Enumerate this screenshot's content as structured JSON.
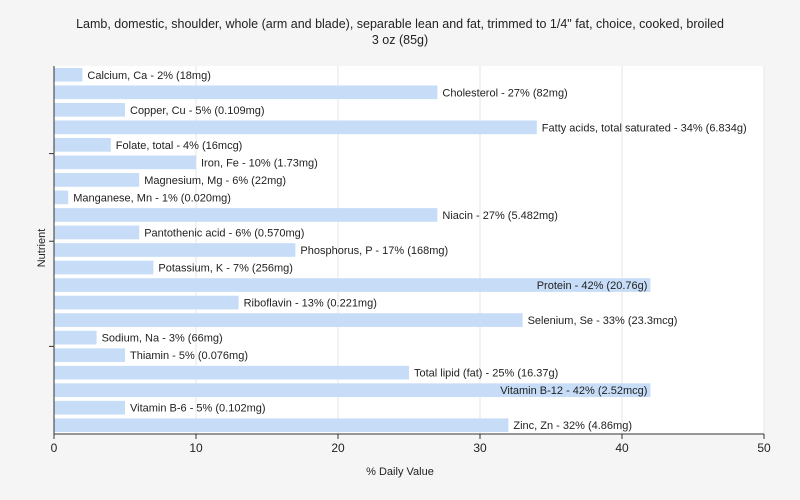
{
  "chart_data": {
    "type": "bar",
    "orientation": "horizontal",
    "title": "Lamb, domestic, shoulder, whole (arm and blade), separable lean and fat, trimmed to 1/4\" fat, choice, cooked, broiled",
    "subtitle": "3 oz (85g)",
    "xlabel": "% Daily Value",
    "ylabel": "Nutrient",
    "xlim": [
      0,
      50
    ],
    "xticks": [
      0,
      10,
      20,
      30,
      40,
      50
    ],
    "grid": true,
    "bar_color": "#c6dcf7",
    "categories": [
      "Calcium, Ca",
      "Cholesterol",
      "Copper, Cu",
      "Fatty acids, total saturated",
      "Folate, total",
      "Iron, Fe",
      "Magnesium, Mg",
      "Manganese, Mn",
      "Niacin",
      "Pantothenic acid",
      "Phosphorus, P",
      "Potassium, K",
      "Protein",
      "Riboflavin",
      "Selenium, Se",
      "Sodium, Na",
      "Thiamin",
      "Total lipid (fat)",
      "Vitamin B-12",
      "Vitamin B-6",
      "Zinc, Zn"
    ],
    "values": [
      2,
      27,
      5,
      34,
      4,
      10,
      6,
      1,
      27,
      6,
      17,
      7,
      42,
      13,
      33,
      3,
      5,
      25,
      42,
      5,
      32
    ],
    "labels": [
      "Calcium, Ca - 2% (18mg)",
      "Cholesterol - 27% (82mg)",
      "Copper, Cu - 5% (0.109mg)",
      "Fatty acids, total saturated - 34% (6.834g)",
      "Folate, total - 4% (16mcg)",
      "Iron, Fe - 10% (1.73mg)",
      "Magnesium, Mg - 6% (22mg)",
      "Manganese, Mn - 1% (0.020mg)",
      "Niacin - 27% (5.482mg)",
      "Pantothenic acid - 6% (0.570mg)",
      "Phosphorus, P - 17% (168mg)",
      "Potassium, K - 7% (256mg)",
      "Protein - 42% (20.76g)",
      "Riboflavin - 13% (0.221mg)",
      "Selenium, Se - 33% (23.3mcg)",
      "Sodium, Na - 3% (66mg)",
      "Thiamin - 5% (0.076mg)",
      "Total lipid (fat) - 25% (16.37g)",
      "Vitamin B-12 - 42% (2.52mcg)",
      "Vitamin B-6 - 5% (0.102mg)",
      "Zinc, Zn - 32% (4.86mg)"
    ]
  }
}
